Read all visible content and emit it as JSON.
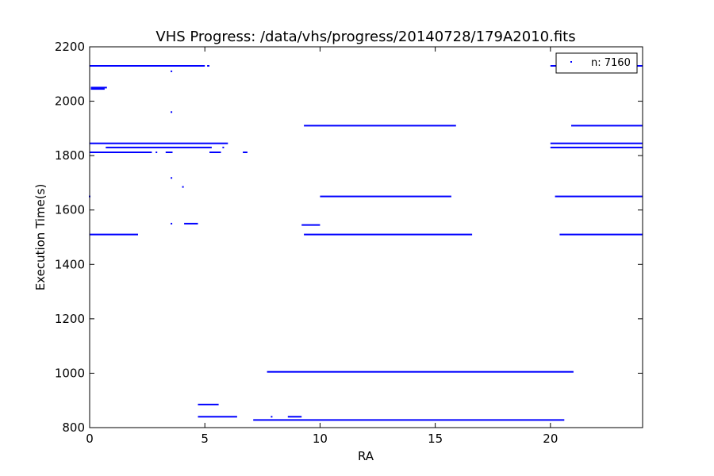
{
  "chart_data": {
    "type": "scatter",
    "title": "VHS Progress: /data/vhs/progress/20140728/179A2010.fits",
    "xlabel": "RA",
    "ylabel": "Execution Time(s)",
    "xlim": [
      0,
      24
    ],
    "ylim": [
      800,
      2200
    ],
    "xticks": [
      0,
      5,
      10,
      15,
      20
    ],
    "xtick_labels": [
      "0",
      "5",
      "10",
      "15",
      "20"
    ],
    "yticks": [
      800,
      1000,
      1200,
      1400,
      1600,
      1800,
      2000,
      2200
    ],
    "ytick_labels": [
      "800",
      "1000",
      "1200",
      "1400",
      "1600",
      "1800",
      "2000",
      "2200"
    ],
    "grid": false,
    "legend": {
      "label": "n: 7160",
      "placement": "top-right"
    },
    "series_color": "#0000ff",
    "series": [
      {
        "marker": "point",
        "segments": [
          {
            "x": [
              0.0,
              5.0
            ],
            "y": 2130
          },
          {
            "x": [
              5.1,
              5.2
            ],
            "y": 2130
          },
          {
            "x": [
              20.0,
              24.0
            ],
            "y": 2130
          },
          {
            "x": [
              0.05,
              0.75
            ],
            "y": 2050
          },
          {
            "x": [
              0.05,
              0.65
            ],
            "y": 2045
          },
          {
            "x": [
              9.3,
              15.9
            ],
            "y": 1910
          },
          {
            "x": [
              20.9,
              24.0
            ],
            "y": 1910
          },
          {
            "x": [
              0.0,
              6.0
            ],
            "y": 1845
          },
          {
            "x": [
              20.0,
              24.0
            ],
            "y": 1845
          },
          {
            "x": [
              0.7,
              5.3
            ],
            "y": 1830
          },
          {
            "x": [
              20.0,
              24.0
            ],
            "y": 1830
          },
          {
            "x": [
              0.0,
              2.7
            ],
            "y": 1812
          },
          {
            "x": [
              3.3,
              3.6
            ],
            "y": 1812
          },
          {
            "x": [
              5.2,
              5.7
            ],
            "y": 1812
          },
          {
            "x": [
              6.65,
              6.85
            ],
            "y": 1812
          },
          {
            "x": [
              10.0,
              15.7
            ],
            "y": 1650
          },
          {
            "x": [
              20.2,
              24.0
            ],
            "y": 1650
          },
          {
            "x": [
              9.2,
              10.0
            ],
            "y": 1545
          },
          {
            "x": [
              4.1,
              4.7
            ],
            "y": 1550
          },
          {
            "x": [
              0.0,
              2.1
            ],
            "y": 1510
          },
          {
            "x": [
              9.3,
              16.6
            ],
            "y": 1510
          },
          {
            "x": [
              20.4,
              24.0
            ],
            "y": 1510
          },
          {
            "x": [
              7.7,
              21.0
            ],
            "y": 1005
          },
          {
            "x": [
              4.7,
              5.6
            ],
            "y": 885
          },
          {
            "x": [
              4.7,
              6.4
            ],
            "y": 840
          },
          {
            "x": [
              8.6,
              9.2
            ],
            "y": 840
          },
          {
            "x": [
              7.1,
              20.6
            ],
            "y": 828
          }
        ],
        "points": [
          {
            "x": 3.55,
            "y": 2110
          },
          {
            "x": 3.55,
            "y": 1960
          },
          {
            "x": 3.55,
            "y": 1718
          },
          {
            "x": 4.05,
            "y": 1685
          },
          {
            "x": 3.55,
            "y": 1550
          },
          {
            "x": 2.9,
            "y": 1812
          },
          {
            "x": 5.8,
            "y": 1830
          },
          {
            "x": 7.9,
            "y": 840
          },
          {
            "x": 0.0,
            "y": 1650
          }
        ]
      }
    ]
  }
}
